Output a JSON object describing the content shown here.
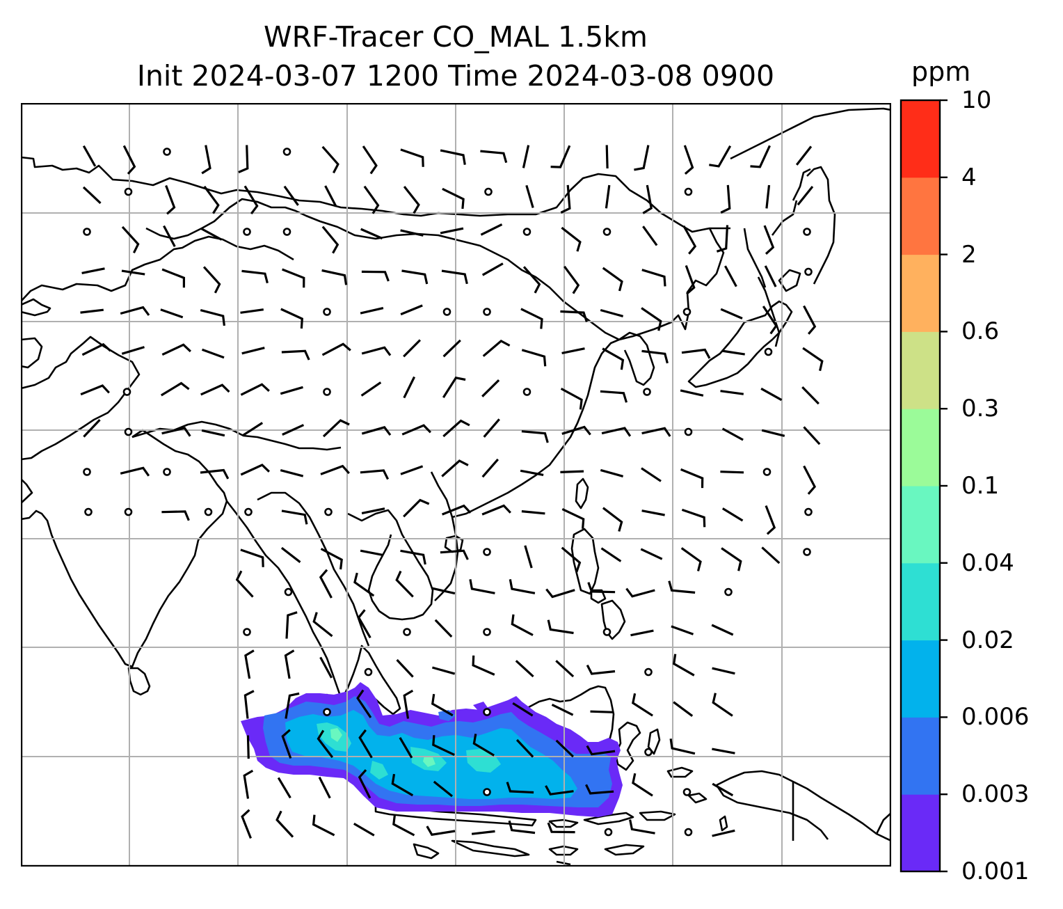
{
  "title": {
    "line1": "WRF-Tracer CO_MAL 1.5km",
    "line2": "Init 2024-03-07 1200 Time 2024-03-08 0900"
  },
  "colorbar": {
    "unit": "ppm",
    "levels": [
      "0.001",
      "0.003",
      "0.006",
      "0.02",
      "0.04",
      "0.1",
      "0.3",
      "0.6",
      "2",
      "4",
      "10"
    ],
    "colors": [
      "#6a2af7",
      "#3274f2",
      "#02b2ec",
      "#2edfd3",
      "#69f7c0",
      "#9bfb99",
      "#cde187",
      "#ffb15e",
      "#ff7540",
      "#ff2d18"
    ]
  },
  "map": {
    "gridlines": true,
    "grid_color": "#b0b0b0",
    "feature": "CO tracer plume over Sumatra, Java Sea, Borneo",
    "wind_barbs": "black",
    "coastlines": "black"
  }
}
